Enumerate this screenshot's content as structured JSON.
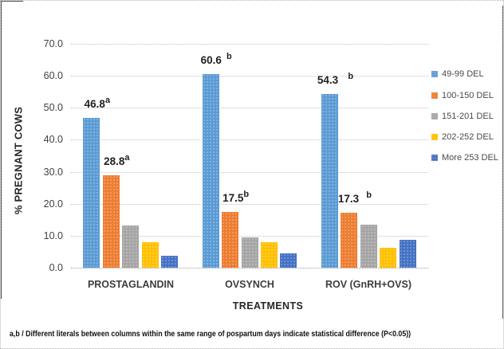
{
  "chart_data": {
    "type": "bar",
    "title": "",
    "categories": [
      "PROSTAGLANDIN",
      "OVSYNCH",
      "ROV (GnRH+OVS)"
    ],
    "series": [
      {
        "name": "49-99 DEL",
        "color": "#5B9BD5",
        "values": [
          46.8,
          60.6,
          54.3
        ],
        "labels": [
          {
            "text": "46.8",
            "sup": "a"
          },
          {
            "text": "60.6",
            "sup": "  b"
          },
          {
            "text": "54.3",
            "sup": "    b"
          }
        ]
      },
      {
        "name": "100-150 DEL",
        "color": "#ED7D31",
        "values": [
          28.8,
          17.5,
          17.3
        ],
        "labels": [
          {
            "text": "28.8",
            "sup": "a"
          },
          {
            "text": "17.5",
            "sup": "b"
          },
          {
            "text": "17.3",
            "sup": "   b"
          }
        ]
      },
      {
        "name": "151-201 DEL",
        "color": "#A5A5A5",
        "values": [
          13.1,
          9.5,
          13.5
        ]
      },
      {
        "name": "202-252 DEL",
        "color": "#FFC000",
        "values": [
          8.0,
          8.0,
          6.2
        ]
      },
      {
        "name": "More 253 DEL",
        "color": "#4472C4",
        "values": [
          3.7,
          4.5,
          8.7
        ]
      }
    ],
    "xlabel": "TREATMENTS",
    "ylabel": "% PREGNANT COWS",
    "ylim": [
      0,
      70
    ],
    "ytick_step": 10,
    "ytick_labels": [
      "0.0",
      "10.0",
      "20.0",
      "30.0",
      "40.0",
      "50.0",
      "60.0",
      "70.0"
    ],
    "grid": "horizontal-dotted",
    "legend_position": "right"
  },
  "footnote": "a,b / Different literals between columns within the same range of pospartum days indicate statistical difference (P<0.05))"
}
